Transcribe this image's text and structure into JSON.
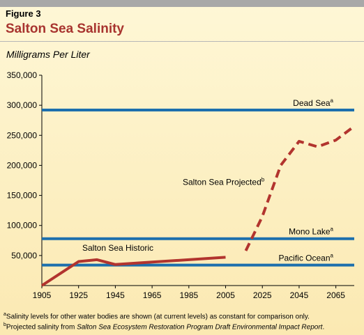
{
  "figure_label": "Figure 3",
  "title": "Salton Sea Salinity",
  "units": "Milligrams Per Liter",
  "colors": {
    "series": "#b2342e",
    "reference": "#1c6fad",
    "background": "#fcefc2",
    "title": "#a8342f"
  },
  "chart_data": {
    "type": "line",
    "title": "Salton Sea Salinity",
    "ylabel": "Milligrams Per Liter",
    "xlabel": "",
    "xlim": [
      1905,
      2075
    ],
    "ylim": [
      0,
      350000
    ],
    "x_ticks": [
      "1905",
      "1925",
      "1945",
      "1965",
      "1985",
      "2005",
      "2025",
      "2045",
      "2065"
    ],
    "y_ticks": [
      "350,000",
      "300,000",
      "250,000",
      "200,000",
      "150,000",
      "100,000",
      "50,000"
    ],
    "grid": false,
    "series": [
      {
        "name": "Salton Sea Historic",
        "style": "solid",
        "points": [
          [
            1905,
            0
          ],
          [
            1925,
            40000
          ],
          [
            1935,
            43000
          ],
          [
            1945,
            35000
          ],
          [
            1965,
            39000
          ],
          [
            1985,
            43000
          ],
          [
            2005,
            47000
          ]
        ]
      },
      {
        "name": "Salton Sea Projected",
        "superscript": "b",
        "style": "dashed",
        "points": [
          [
            2016,
            58000
          ],
          [
            2025,
            115000
          ],
          [
            2035,
            200000
          ],
          [
            2045,
            240000
          ],
          [
            2055,
            231000
          ],
          [
            2065,
            242000
          ],
          [
            2075,
            265000
          ]
        ]
      }
    ],
    "reference_lines": [
      {
        "name": "Dead Sea",
        "superscript": "a",
        "value": 292000
      },
      {
        "name": "Mono Lake",
        "superscript": "a",
        "value": 78000
      },
      {
        "name": "Pacific Ocean",
        "superscript": "a",
        "value": 34000
      }
    ]
  },
  "footnotes": [
    {
      "mark": "a",
      "text": "Salinity levels for other water bodies are shown (at current levels) as constant for comparison only."
    },
    {
      "mark": "b",
      "pre": "Projected salinity from ",
      "italic": "Salton Sea Ecosystem Restoration Program Draft Environmental Impact Report",
      "post": "."
    }
  ]
}
